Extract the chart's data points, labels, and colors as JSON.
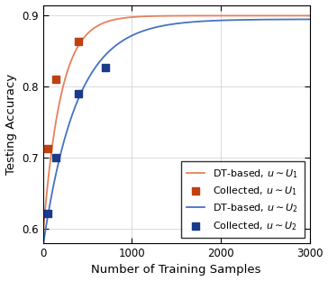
{
  "title": "",
  "xlabel": "Number of Training Samples",
  "ylabel": "Testing Accuracy",
  "xlim": [
    0,
    3000
  ],
  "ylim": [
    0.58,
    0.915
  ],
  "yticks": [
    0.6,
    0.7,
    0.8,
    0.9
  ],
  "xticks": [
    0,
    1000,
    2000,
    3000
  ],
  "curve_u1": {
    "color": "#E8805A",
    "label": "DT-based, $u \\sim U_1$",
    "asymptote": 0.9,
    "drop": 0.31,
    "tau": 200
  },
  "curve_u2": {
    "color": "#4472C4",
    "label": "DT-based, $u \\sim U_2$",
    "asymptote": 0.895,
    "drop": 0.32,
    "tau": 380
  },
  "scatter_u1": {
    "color": "#C04010",
    "label": "Collected, $u \\sim U_1$",
    "x": [
      50,
      150,
      400
    ],
    "y": [
      0.713,
      0.811,
      0.864
    ]
  },
  "scatter_u2": {
    "color": "#1A3A8A",
    "label": "Collected, $u \\sim U_2$",
    "x": [
      50,
      150,
      400,
      700
    ],
    "y": [
      0.622,
      0.7,
      0.79,
      0.827
    ]
  },
  "legend_loc": "lower right",
  "legend_fontsize": 8.0,
  "grid_color": "#CCCCCC",
  "background_color": "#ffffff"
}
